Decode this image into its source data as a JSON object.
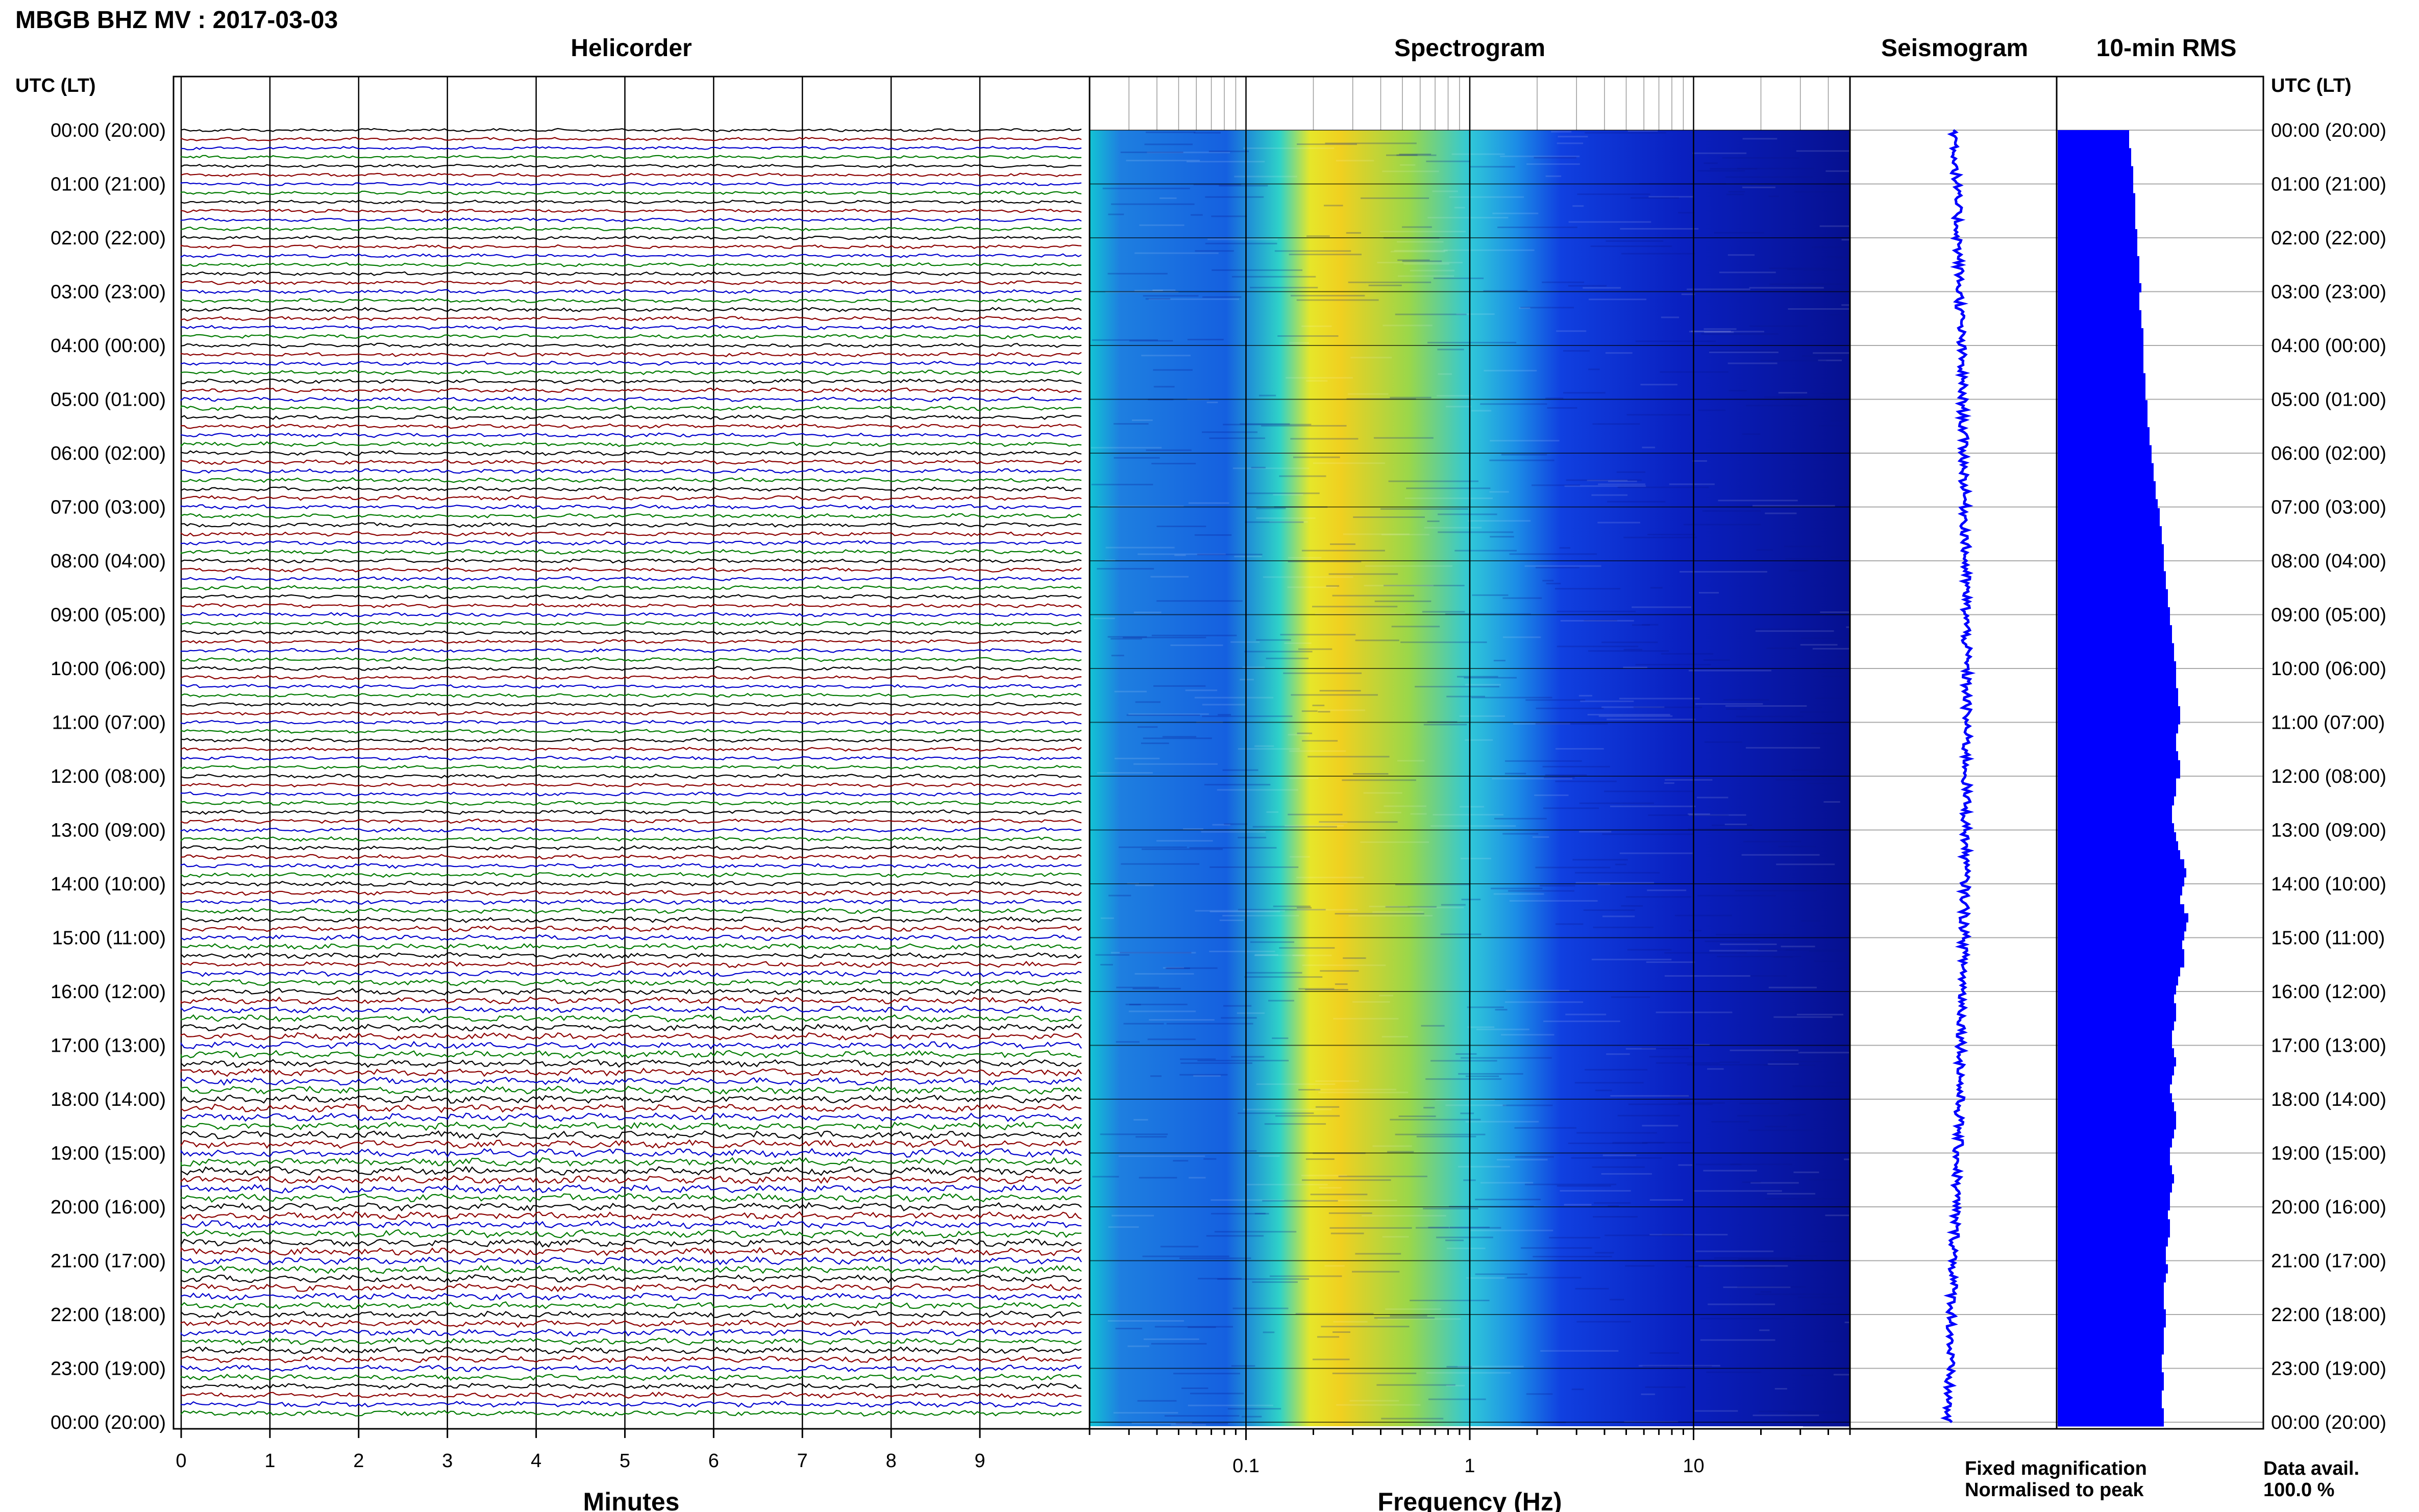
{
  "header": {
    "title": "MBGB BHZ MV : 2017-03-03",
    "utc_label": "UTC (LT)"
  },
  "panels": {
    "helicorder": "Helicorder",
    "spectrogram": "Spectrogram",
    "seismogram": "Seismogram",
    "rms": "10-min RMS"
  },
  "hour_labels": [
    "00:00 (20:00)",
    "01:00 (21:00)",
    "02:00 (22:00)",
    "03:00 (23:00)",
    "04:00 (00:00)",
    "05:00 (01:00)",
    "06:00 (02:00)",
    "07:00 (03:00)",
    "08:00 (04:00)",
    "09:00 (05:00)",
    "10:00 (06:00)",
    "11:00 (07:00)",
    "12:00 (08:00)",
    "13:00 (09:00)",
    "14:00 (10:00)",
    "15:00 (11:00)",
    "16:00 (12:00)",
    "17:00 (13:00)",
    "18:00 (14:00)",
    "19:00 (15:00)",
    "20:00 (16:00)",
    "21:00 (17:00)",
    "22:00 (18:00)",
    "23:00 (19:00)",
    "00:00 (20:00)"
  ],
  "footer": {
    "fixed_magnification": "Fixed magnification",
    "normalised_to_peak": "Normalised to peak",
    "data_avail_label": "Data avail.",
    "data_avail_value": "100.0 %"
  },
  "colors": {
    "trace_cycle": [
      "#000000",
      "#8b0000",
      "#0000cc",
      "#007a00"
    ],
    "fixed_magnification": "#0000ff",
    "normalised_to_peak": "#ff0000",
    "seismogram": "#0000ff",
    "rms_bars": "#0000ff"
  },
  "chart_data": [
    {
      "type": "line",
      "title": "Helicorder",
      "xlabel": "Minutes",
      "x_ticks": [
        "0",
        "1",
        "2",
        "3",
        "4",
        "5",
        "6",
        "7",
        "8",
        "9"
      ],
      "xlim": [
        0,
        10
      ],
      "traces_per_hour": 6,
      "trace_count": 144,
      "grid": true
    },
    {
      "type": "heatmap",
      "title": "Spectrogram",
      "xlabel": "Frequency (Hz)",
      "x_scale": "log",
      "x_ticks": [
        "0.1",
        "1",
        "10"
      ],
      "xlim": [
        0.02,
        50
      ],
      "colormap": "jet",
      "peak_band_hz": [
        0.2,
        0.5
      ],
      "grid": true
    },
    {
      "type": "line",
      "title": "Seismogram",
      "grid": true
    },
    {
      "type": "bar",
      "title": "10-min RMS",
      "orientation": "horizontal",
      "values": [
        0.35,
        0.35,
        0.36,
        0.36,
        0.37,
        0.37,
        0.37,
        0.38,
        0.38,
        0.38,
        0.38,
        0.39,
        0.39,
        0.39,
        0.4,
        0.4,
        0.4,
        0.41,
        0.4,
        0.4,
        0.41,
        0.41,
        0.42,
        0.42,
        0.42,
        0.42,
        0.42,
        0.43,
        0.43,
        0.43,
        0.44,
        0.44,
        0.44,
        0.45,
        0.45,
        0.46,
        0.46,
        0.47,
        0.47,
        0.48,
        0.48,
        0.49,
        0.5,
        0.5,
        0.51,
        0.51,
        0.52,
        0.52,
        0.52,
        0.53,
        0.53,
        0.54,
        0.54,
        0.55,
        0.55,
        0.56,
        0.56,
        0.57,
        0.57,
        0.58,
        0.58,
        0.58,
        0.59,
        0.59,
        0.6,
        0.6,
        0.59,
        0.58,
        0.58,
        0.59,
        0.6,
        0.6,
        0.58,
        0.58,
        0.57,
        0.56,
        0.56,
        0.57,
        0.58,
        0.59,
        0.6,
        0.62,
        0.63,
        0.62,
        0.61,
        0.6,
        0.62,
        0.64,
        0.63,
        0.62,
        0.61,
        0.62,
        0.62,
        0.6,
        0.59,
        0.58,
        0.57,
        0.58,
        0.58,
        0.57,
        0.56,
        0.56,
        0.57,
        0.58,
        0.57,
        0.56,
        0.55,
        0.56,
        0.57,
        0.58,
        0.58,
        0.57,
        0.56,
        0.55,
        0.55,
        0.56,
        0.57,
        0.56,
        0.55,
        0.55,
        0.54,
        0.55,
        0.55,
        0.54,
        0.53,
        0.53,
        0.54,
        0.53,
        0.52,
        0.52,
        0.52,
        0.53,
        0.53,
        0.52,
        0.52,
        0.52,
        0.51,
        0.51,
        0.52,
        0.52,
        0.51,
        0.51,
        0.52,
        0.52
      ],
      "xlim": [
        0,
        1
      ]
    }
  ]
}
